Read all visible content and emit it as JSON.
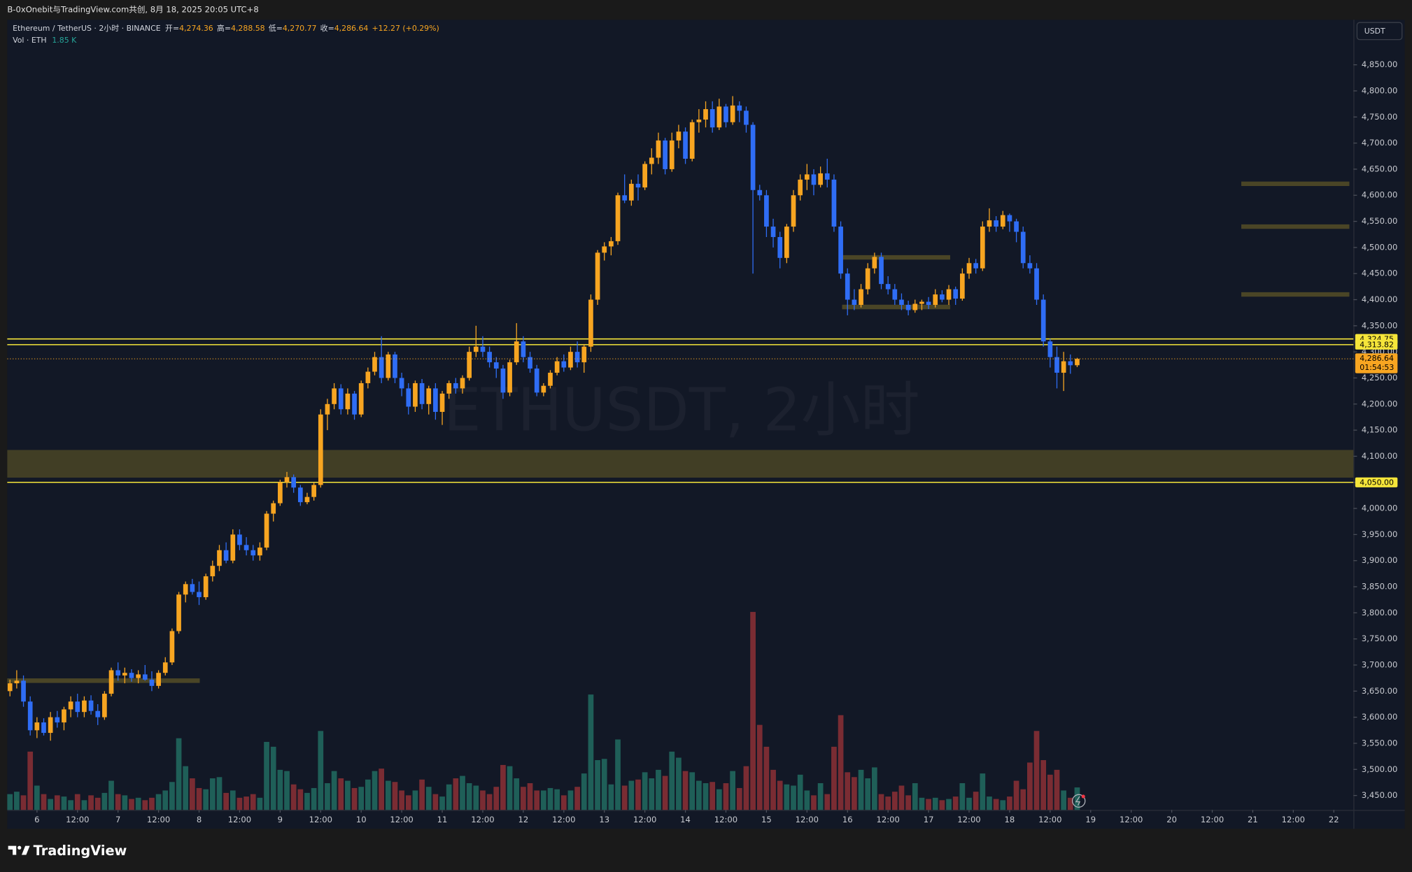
{
  "header": {
    "text": "B-0xOnebit与TradingView.com共创, 8月 18, 2025 20:05 UTC+8"
  },
  "footer": {
    "brand": "TradingView"
  },
  "chart_data": {
    "type": "candlestick",
    "title": "ETHUSDT, 2小时",
    "currency": "USDT",
    "legend": {
      "symbol": "Ethereum / TetherUS · 2小时 · BINANCE",
      "fields": [
        {
          "key": "开=",
          "value": "4,274.36"
        },
        {
          "key": "高=",
          "value": "4,288.58"
        },
        {
          "key": "低=",
          "value": "4,270.77"
        },
        {
          "key": "收=",
          "value": "4,286.64"
        }
      ],
      "change": "+12.27 (+0.29%)",
      "volume_name": "Vol · ETH",
      "volume_value": "1.85 K"
    },
    "up_color": "#f7a521",
    "down_color": "#2f6df5",
    "candles": [
      [
        3650,
        3672,
        3640,
        3665
      ],
      [
        3665,
        3690,
        3655,
        3670
      ],
      [
        3670,
        3680,
        3620,
        3630
      ],
      [
        3630,
        3640,
        3565,
        3575
      ],
      [
        3575,
        3600,
        3560,
        3590
      ],
      [
        3590,
        3598,
        3565,
        3570
      ],
      [
        3570,
        3610,
        3555,
        3600
      ],
      [
        3600,
        3612,
        3580,
        3590
      ],
      [
        3590,
        3620,
        3575,
        3615
      ],
      [
        3615,
        3640,
        3600,
        3630
      ],
      [
        3630,
        3645,
        3600,
        3610
      ],
      [
        3610,
        3640,
        3600,
        3632
      ],
      [
        3632,
        3642,
        3605,
        3612
      ],
      [
        3612,
        3625,
        3585,
        3600
      ],
      [
        3600,
        3650,
        3595,
        3645
      ],
      [
        3645,
        3695,
        3640,
        3690
      ],
      [
        3690,
        3705,
        3670,
        3680
      ],
      [
        3680,
        3695,
        3665,
        3685
      ],
      [
        3685,
        3692,
        3668,
        3675
      ],
      [
        3675,
        3690,
        3665,
        3682
      ],
      [
        3682,
        3700,
        3670,
        3672
      ],
      [
        3672,
        3688,
        3650,
        3660
      ],
      [
        3660,
        3690,
        3655,
        3685
      ],
      [
        3685,
        3715,
        3680,
        3705
      ],
      [
        3705,
        3770,
        3700,
        3765
      ],
      [
        3765,
        3840,
        3760,
        3835
      ],
      [
        3835,
        3860,
        3820,
        3855
      ],
      [
        3855,
        3865,
        3835,
        3840
      ],
      [
        3840,
        3860,
        3815,
        3830
      ],
      [
        3830,
        3875,
        3825,
        3870
      ],
      [
        3870,
        3900,
        3860,
        3890
      ],
      [
        3890,
        3930,
        3880,
        3920
      ],
      [
        3920,
        3935,
        3895,
        3900
      ],
      [
        3900,
        3960,
        3895,
        3950
      ],
      [
        3950,
        3960,
        3920,
        3930
      ],
      [
        3930,
        3945,
        3910,
        3920
      ],
      [
        3920,
        3930,
        3900,
        3910
      ],
      [
        3910,
        3935,
        3900,
        3925
      ],
      [
        3925,
        3995,
        3920,
        3990
      ],
      [
        3990,
        4015,
        3975,
        4010
      ],
      [
        4010,
        4055,
        4005,
        4050
      ],
      [
        4050,
        4070,
        4040,
        4060
      ],
      [
        4060,
        4065,
        4030,
        4040
      ],
      [
        4040,
        4045,
        4005,
        4012
      ],
      [
        4012,
        4030,
        4008,
        4022
      ],
      [
        4022,
        4050,
        4015,
        4045
      ],
      [
        4045,
        4190,
        4040,
        4180
      ],
      [
        4180,
        4210,
        4150,
        4200
      ],
      [
        4200,
        4240,
        4190,
        4230
      ],
      [
        4230,
        4238,
        4180,
        4190
      ],
      [
        4190,
        4230,
        4180,
        4220
      ],
      [
        4220,
        4225,
        4170,
        4180
      ],
      [
        4180,
        4245,
        4175,
        4240
      ],
      [
        4240,
        4270,
        4230,
        4262
      ],
      [
        4262,
        4300,
        4255,
        4290
      ],
      [
        4290,
        4330,
        4240,
        4250
      ],
      [
        4250,
        4300,
        4245,
        4295
      ],
      [
        4295,
        4300,
        4240,
        4250
      ],
      [
        4250,
        4260,
        4215,
        4230
      ],
      [
        4230,
        4240,
        4180,
        4195
      ],
      [
        4195,
        4245,
        4185,
        4240
      ],
      [
        4240,
        4248,
        4190,
        4200
      ],
      [
        4200,
        4235,
        4180,
        4230
      ],
      [
        4230,
        4240,
        4170,
        4185
      ],
      [
        4185,
        4225,
        4160,
        4220
      ],
      [
        4220,
        4245,
        4210,
        4240
      ],
      [
        4240,
        4250,
        4220,
        4230
      ],
      [
        4230,
        4255,
        4220,
        4250
      ],
      [
        4250,
        4310,
        4245,
        4300
      ],
      [
        4300,
        4350,
        4290,
        4310
      ],
      [
        4310,
        4330,
        4290,
        4300
      ],
      [
        4300,
        4310,
        4270,
        4280
      ],
      [
        4280,
        4290,
        4250,
        4268
      ],
      [
        4268,
        4275,
        4210,
        4222
      ],
      [
        4222,
        4285,
        4215,
        4280
      ],
      [
        4280,
        4355,
        4275,
        4320
      ],
      [
        4320,
        4330,
        4280,
        4290
      ],
      [
        4290,
        4300,
        4260,
        4268
      ],
      [
        4268,
        4275,
        4215,
        4222
      ],
      [
        4222,
        4240,
        4215,
        4235
      ],
      [
        4235,
        4265,
        4230,
        4260
      ],
      [
        4260,
        4290,
        4255,
        4282
      ],
      [
        4282,
        4295,
        4262,
        4270
      ],
      [
        4270,
        4310,
        4265,
        4300
      ],
      [
        4300,
        4320,
        4270,
        4280
      ],
      [
        4280,
        4315,
        4260,
        4310
      ],
      [
        4310,
        4410,
        4300,
        4400
      ],
      [
        4400,
        4495,
        4390,
        4490
      ],
      [
        4490,
        4510,
        4475,
        4502
      ],
      [
        4502,
        4520,
        4485,
        4512
      ],
      [
        4512,
        4605,
        4505,
        4600
      ],
      [
        4600,
        4640,
        4585,
        4590
      ],
      [
        4590,
        4630,
        4580,
        4622
      ],
      [
        4622,
        4640,
        4590,
        4615
      ],
      [
        4615,
        4665,
        4610,
        4660
      ],
      [
        4660,
        4690,
        4640,
        4672
      ],
      [
        4672,
        4720,
        4660,
        4705
      ],
      [
        4705,
        4710,
        4640,
        4650
      ],
      [
        4650,
        4720,
        4645,
        4705
      ],
      [
        4705,
        4735,
        4690,
        4722
      ],
      [
        4722,
        4730,
        4660,
        4670
      ],
      [
        4670,
        4745,
        4665,
        4740
      ],
      [
        4740,
        4765,
        4720,
        4745
      ],
      [
        4745,
        4780,
        4730,
        4765
      ],
      [
        4765,
        4780,
        4720,
        4730
      ],
      [
        4730,
        4785,
        4725,
        4770
      ],
      [
        4770,
        4775,
        4730,
        4740
      ],
      [
        4740,
        4790,
        4735,
        4772
      ],
      [
        4772,
        4780,
        4740,
        4762
      ],
      [
        4762,
        4770,
        4720,
        4735
      ],
      [
        4735,
        4740,
        4450,
        4610
      ],
      [
        4610,
        4620,
        4590,
        4600
      ],
      [
        4600,
        4610,
        4520,
        4540
      ],
      [
        4540,
        4555,
        4500,
        4520
      ],
      [
        4520,
        4530,
        4460,
        4480
      ],
      [
        4480,
        4545,
        4470,
        4540
      ],
      [
        4540,
        4610,
        4530,
        4600
      ],
      [
        4600,
        4640,
        4590,
        4630
      ],
      [
        4630,
        4660,
        4610,
        4640
      ],
      [
        4640,
        4650,
        4600,
        4620
      ],
      [
        4620,
        4655,
        4615,
        4642
      ],
      [
        4642,
        4670,
        4615,
        4630
      ],
      [
        4630,
        4640,
        4530,
        4540
      ],
      [
        4540,
        4550,
        4440,
        4450
      ],
      [
        4450,
        4460,
        4370,
        4400
      ],
      [
        4400,
        4420,
        4380,
        4390
      ],
      [
        4390,
        4430,
        4385,
        4420
      ],
      [
        4420,
        4470,
        4410,
        4460
      ],
      [
        4460,
        4490,
        4450,
        4482
      ],
      [
        4482,
        4490,
        4420,
        4430
      ],
      [
        4430,
        4445,
        4410,
        4420
      ],
      [
        4420,
        4430,
        4390,
        4400
      ],
      [
        4400,
        4412,
        4380,
        4390
      ],
      [
        4390,
        4398,
        4370,
        4380
      ],
      [
        4380,
        4400,
        4375,
        4392
      ],
      [
        4392,
        4400,
        4380,
        4396
      ],
      [
        4396,
        4405,
        4382,
        4390
      ],
      [
        4390,
        4420,
        4385,
        4410
      ],
      [
        4410,
        4418,
        4395,
        4400
      ],
      [
        4400,
        4428,
        4390,
        4420
      ],
      [
        4420,
        4425,
        4390,
        4402
      ],
      [
        4402,
        4460,
        4398,
        4450
      ],
      [
        4450,
        4480,
        4440,
        4470
      ],
      [
        4470,
        4478,
        4450,
        4460
      ],
      [
        4460,
        4550,
        4455,
        4540
      ],
      [
        4540,
        4575,
        4530,
        4552
      ],
      [
        4552,
        4560,
        4530,
        4540
      ],
      [
        4540,
        4570,
        4535,
        4562
      ],
      [
        4562,
        4565,
        4530,
        4550
      ],
      [
        4550,
        4555,
        4510,
        4530
      ],
      [
        4530,
        4540,
        4460,
        4470
      ],
      [
        4470,
        4485,
        4450,
        4460
      ],
      [
        4460,
        4470,
        4390,
        4400
      ],
      [
        4400,
        4410,
        4310,
        4320
      ],
      [
        4320,
        4325,
        4270,
        4290
      ],
      [
        4290,
        4310,
        4230,
        4260
      ],
      [
        4260,
        4300,
        4225,
        4282
      ],
      [
        4282,
        4295,
        4258,
        4274.36
      ],
      [
        4274.36,
        4288.58,
        4270.77,
        4286.64
      ]
    ],
    "volume": {
      "up_color": "#1f5f58",
      "down_color": "#7a2c33",
      "values": [
        1.3,
        1.5,
        1.2,
        4.8,
        2.0,
        1.3,
        0.9,
        1.2,
        1.1,
        0.8,
        1.3,
        0.8,
        1.2,
        1.0,
        1.4,
        2.4,
        1.3,
        1.2,
        0.9,
        1.0,
        0.8,
        1.0,
        1.3,
        1.6,
        2.3,
        5.9,
        3.6,
        2.6,
        1.8,
        1.7,
        2.6,
        2.7,
        1.4,
        1.6,
        1.0,
        1.1,
        1.3,
        1.0,
        5.6,
        5.2,
        3.3,
        3.2,
        2.1,
        1.7,
        1.4,
        1.8,
        6.5,
        2.2,
        3.2,
        2.6,
        2.4,
        1.8,
        1.9,
        2.5,
        3.2,
        3.4,
        2.4,
        2.3,
        1.6,
        1.2,
        1.6,
        2.5,
        1.9,
        1.3,
        1.1,
        2.1,
        2.6,
        2.8,
        2.2,
        2.0,
        1.6,
        1.3,
        1.9,
        3.7,
        3.6,
        2.6,
        1.9,
        2.2,
        1.6,
        1.6,
        1.8,
        1.7,
        1.2,
        1.6,
        1.9,
        3.0,
        9.5,
        4.1,
        4.2,
        2.1,
        5.8,
        2.0,
        2.4,
        2.5,
        3.1,
        2.6,
        3.3,
        2.8,
        4.8,
        4.3,
        3.2,
        3.1,
        2.4,
        2.2,
        2.3,
        1.7,
        2.2,
        3.2,
        1.8,
        3.6,
        16.3,
        7.0,
        5.2,
        3.3,
        2.4,
        2.1,
        2.0,
        2.9,
        1.6,
        1.2,
        2.2,
        1.3,
        5.2,
        7.8,
        3.1,
        2.7,
        3.3,
        2.6,
        3.5,
        1.3,
        1.1,
        1.5,
        2.0,
        1.2,
        2.2,
        1.0,
        0.9,
        1.0,
        0.8,
        0.9,
        1.1,
        2.2,
        1.0,
        1.5,
        3.0,
        1.1,
        0.9,
        0.8,
        1.1,
        2.4,
        1.7,
        3.9,
        6.5,
        4.1,
        2.9,
        3.3,
        1.6,
        1.0,
        1.85
      ]
    },
    "xlim": [
      -0.4,
      198.9
    ],
    "xticks": [
      {
        "value": 4,
        "label": "6"
      },
      {
        "value": 10,
        "label": "12:00"
      },
      {
        "value": 16,
        "label": "7"
      },
      {
        "value": 22,
        "label": "12:00"
      },
      {
        "value": 28,
        "label": "8"
      },
      {
        "value": 34,
        "label": "12:00"
      },
      {
        "value": 40,
        "label": "9"
      },
      {
        "value": 46,
        "label": "12:00"
      },
      {
        "value": 52,
        "label": "10"
      },
      {
        "value": 58,
        "label": "12:00"
      },
      {
        "value": 64,
        "label": "11"
      },
      {
        "value": 70,
        "label": "12:00"
      },
      {
        "value": 76,
        "label": "12"
      },
      {
        "value": 82,
        "label": "12:00"
      },
      {
        "value": 88,
        "label": "13"
      },
      {
        "value": 94,
        "label": "12:00"
      },
      {
        "value": 100,
        "label": "14"
      },
      {
        "value": 106,
        "label": "12:00"
      },
      {
        "value": 112,
        "label": "15"
      },
      {
        "value": 118,
        "label": "12:00"
      },
      {
        "value": 124,
        "label": "16"
      },
      {
        "value": 130,
        "label": "12:00"
      },
      {
        "value": 136,
        "label": "17"
      },
      {
        "value": 142,
        "label": "12:00"
      },
      {
        "value": 148,
        "label": "18"
      },
      {
        "value": 154,
        "label": "12:00"
      },
      {
        "value": 160,
        "label": "19"
      },
      {
        "value": 166,
        "label": "12:00"
      },
      {
        "value": 172,
        "label": "20"
      },
      {
        "value": 178,
        "label": "12:00"
      },
      {
        "value": 184,
        "label": "21"
      },
      {
        "value": 190,
        "label": "12:00"
      },
      {
        "value": 196,
        "label": "22"
      }
    ],
    "ylim": [
      3422.4,
      4936.2
    ],
    "yticks": [
      {
        "value": 3450,
        "label": "3,450.00"
      },
      {
        "value": 3500,
        "label": "3,500.00"
      },
      {
        "value": 3550,
        "label": "3,550.00"
      },
      {
        "value": 3600,
        "label": "3,600.00"
      },
      {
        "value": 3650,
        "label": "3,650.00"
      },
      {
        "value": 3700,
        "label": "3,700.00"
      },
      {
        "value": 3750,
        "label": "3,750.00"
      },
      {
        "value": 3800,
        "label": "3,800.00"
      },
      {
        "value": 3850,
        "label": "3,850.00"
      },
      {
        "value": 3900,
        "label": "3,900.00"
      },
      {
        "value": 3950,
        "label": "3,950.00"
      },
      {
        "value": 4000,
        "label": "4,000.00"
      },
      {
        "value": 4050,
        "label": "4,050.00"
      },
      {
        "value": 4100,
        "label": "4,100.00"
      },
      {
        "value": 4150,
        "label": "4,150.00"
      },
      {
        "value": 4200,
        "label": "4,200.00"
      },
      {
        "value": 4250,
        "label": "4,250.00"
      },
      {
        "value": 4300,
        "label": "4,300.00"
      },
      {
        "value": 4350,
        "label": "4,350.00"
      },
      {
        "value": 4400,
        "label": "4,400.00"
      },
      {
        "value": 4450,
        "label": "4,450.00"
      },
      {
        "value": 4500,
        "label": "4,500.00"
      },
      {
        "value": 4550,
        "label": "4,550.00"
      },
      {
        "value": 4600,
        "label": "4,600.00"
      },
      {
        "value": 4650,
        "label": "4,650.00"
      },
      {
        "value": 4700,
        "label": "4,700.00"
      },
      {
        "value": 4750,
        "label": "4,750.00"
      },
      {
        "value": 4800,
        "label": "4,800.00"
      },
      {
        "value": 4850,
        "label": "4,850.00"
      }
    ],
    "grid": false,
    "level_color": "#f5e53a",
    "levels": [
      {
        "value": 4324.75,
        "label": "4,324.75"
      },
      {
        "value": 4313.82,
        "label": "4,313.82"
      },
      {
        "value": 4050,
        "label": "4,050.00"
      }
    ],
    "last_price": {
      "label": "4,286.64",
      "countdown": "01:54:53"
    },
    "zone_color": "#4a4526",
    "zones": [
      {
        "from": 4059,
        "to": 4112
      }
    ],
    "segments": [
      {
        "value": 3670,
        "x": [
          -0.4,
          28.1
        ]
      },
      {
        "value": 4481,
        "x": [
          123.2,
          139.2
        ]
      },
      {
        "value": 4386,
        "x": [
          123.2,
          139.2
        ]
      },
      {
        "value": 4622,
        "x": [
          182.3,
          198.3
        ]
      },
      {
        "value": 4540,
        "x": [
          182.3,
          198.3
        ]
      },
      {
        "value": 4410,
        "x": [
          182.3,
          198.3
        ]
      }
    ]
  }
}
